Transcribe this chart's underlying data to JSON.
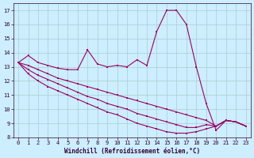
{
  "xlabel": "Windchill (Refroidissement éolien,°C)",
  "background_color": "#cceeff",
  "line_color": "#990066",
  "grid_color": "#aacccc",
  "ylim": [
    8,
    17.5
  ],
  "xlim": [
    -0.5,
    23.5
  ],
  "yticks": [
    8,
    9,
    10,
    11,
    12,
    13,
    14,
    15,
    16,
    17
  ],
  "xticks": [
    0,
    1,
    2,
    3,
    4,
    5,
    6,
    7,
    8,
    9,
    10,
    11,
    12,
    13,
    14,
    15,
    16,
    17,
    18,
    19,
    20,
    21,
    22,
    23
  ],
  "series": [
    [
      13.3,
      13.8,
      13.3,
      13.1,
      12.9,
      12.8,
      12.8,
      14.2,
      13.2,
      13.0,
      13.1,
      13.0,
      13.5,
      13.1,
      15.5,
      17.0,
      17.0,
      16.0,
      13.0,
      10.4,
      8.5,
      9.2,
      9.1,
      8.8
    ],
    [
      13.3,
      13.1,
      12.8,
      12.5,
      12.2,
      12.0,
      11.8,
      11.6,
      11.4,
      11.2,
      11.0,
      10.8,
      10.6,
      10.4,
      10.2,
      10.0,
      9.8,
      9.6,
      9.4,
      9.2,
      8.8,
      9.2,
      9.1,
      8.8
    ],
    [
      13.3,
      12.8,
      12.4,
      12.1,
      11.8,
      11.5,
      11.2,
      10.9,
      10.7,
      10.4,
      10.2,
      10.0,
      9.7,
      9.5,
      9.3,
      9.1,
      8.9,
      8.7,
      8.7,
      8.9,
      8.8,
      9.2,
      9.1,
      8.8
    ],
    [
      13.3,
      12.5,
      12.0,
      11.6,
      11.3,
      11.0,
      10.7,
      10.4,
      10.1,
      9.8,
      9.6,
      9.3,
      9.0,
      8.8,
      8.6,
      8.4,
      8.3,
      8.3,
      8.4,
      8.6,
      8.8,
      9.2,
      9.1,
      8.8
    ]
  ]
}
